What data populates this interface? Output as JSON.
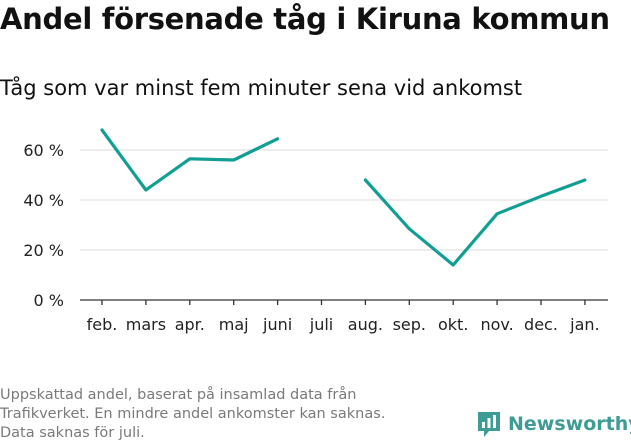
{
  "title": "Andel försenade tåg i Kiruna kommun",
  "subtitle": "Tåg som var minst fem minuter sena vid ankomst",
  "footnote": [
    "Uppskattad andel, baserat på insamlad data från",
    "Trafikverket. En mindre andel ankomster kan saknas.",
    "Data saknas för juli."
  ],
  "logo": {
    "text": "Newsworthy",
    "icon": "bar-chart-logo-icon",
    "color": "#3e9c94"
  },
  "chart_data": {
    "type": "line",
    "title": "Andel försenade tåg i Kiruna kommun",
    "subtitle": "Tåg som var minst fem minuter sena vid ankomst",
    "categories": [
      "feb.",
      "mars",
      "apr.",
      "maj",
      "juni",
      "juli",
      "aug.",
      "sep.",
      "okt.",
      "nov.",
      "dec.",
      "jan."
    ],
    "values": [
      68,
      44,
      56.5,
      56,
      64.5,
      null,
      48,
      28.5,
      14,
      34.5,
      41.5,
      48
    ],
    "ylim": [
      0,
      70
    ],
    "yticks": [
      0,
      20,
      40,
      60
    ],
    "ytick_labels": [
      "0 %",
      "20 %",
      "40 %",
      "60 %"
    ],
    "line_color": "#119e93",
    "grid": true,
    "legend": "none"
  }
}
